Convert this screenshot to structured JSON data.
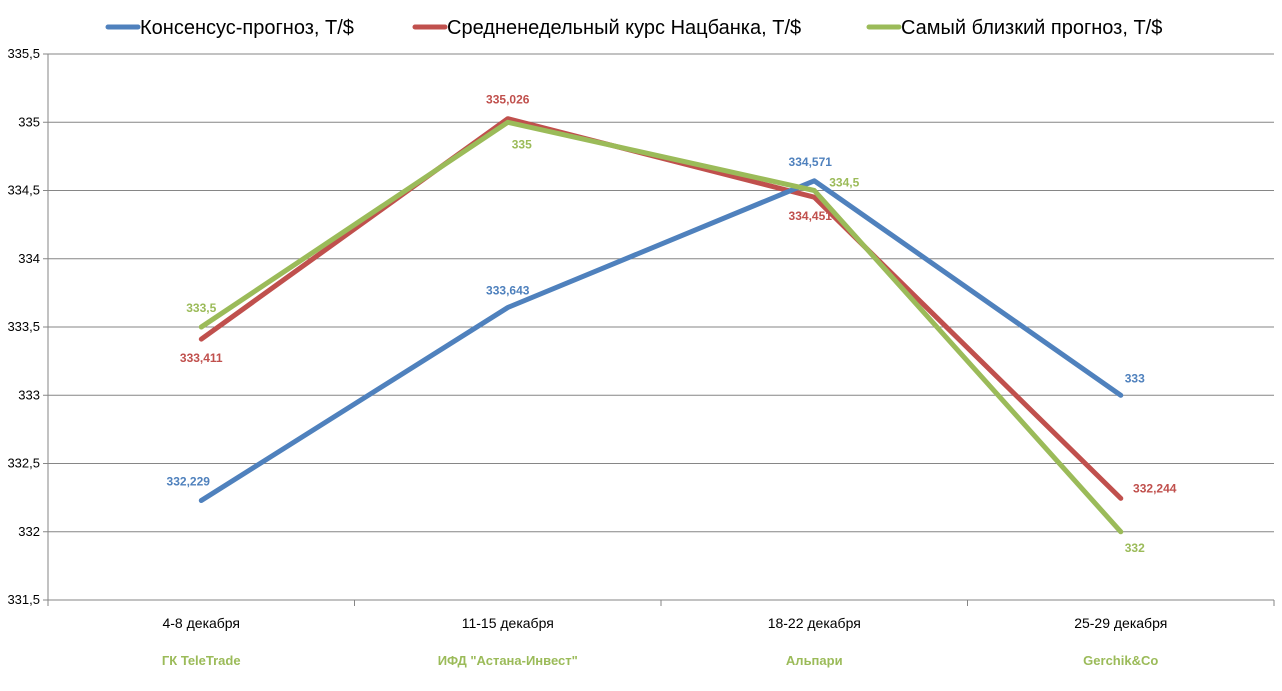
{
  "chart_data": {
    "type": "line",
    "categories": [
      "4-8 декабря",
      "11-15 декабря",
      "18-22 декабря",
      "25-29 декабря"
    ],
    "category_sublabels": [
      "ГК TeleTrade",
      "ИФД \"Астана-Инвест\"",
      "Альпари",
      "Gerchik&Co"
    ],
    "ylim": [
      331.5,
      335.5
    ],
    "yticks": [
      "331,5",
      "332",
      "332,5",
      "333",
      "333,5",
      "334",
      "334,5",
      "335",
      "335,5"
    ],
    "grid": true,
    "legend_position": "top",
    "series": [
      {
        "name": "Консенсус-прогноз,  Т/$",
        "color": "#4f81bd",
        "values": [
          332.229,
          333.643,
          334.571,
          333
        ],
        "labels": [
          "332,229",
          "333,643",
          "334,571",
          "333"
        ]
      },
      {
        "name": "Средненедельный  курс Нацбанка, Т/$",
        "color": "#c0504d",
        "values": [
          333.411,
          335.026,
          334.451,
          332.244
        ],
        "labels": [
          "333,411",
          "335,026",
          "334,451",
          "332,244"
        ]
      },
      {
        "name": "Самый близкий прогноз, Т/$",
        "color": "#9bbb59",
        "values": [
          333.5,
          335,
          334.5,
          332
        ],
        "labels": [
          "333,5",
          "335",
          "334,5",
          "332"
        ]
      }
    ]
  }
}
